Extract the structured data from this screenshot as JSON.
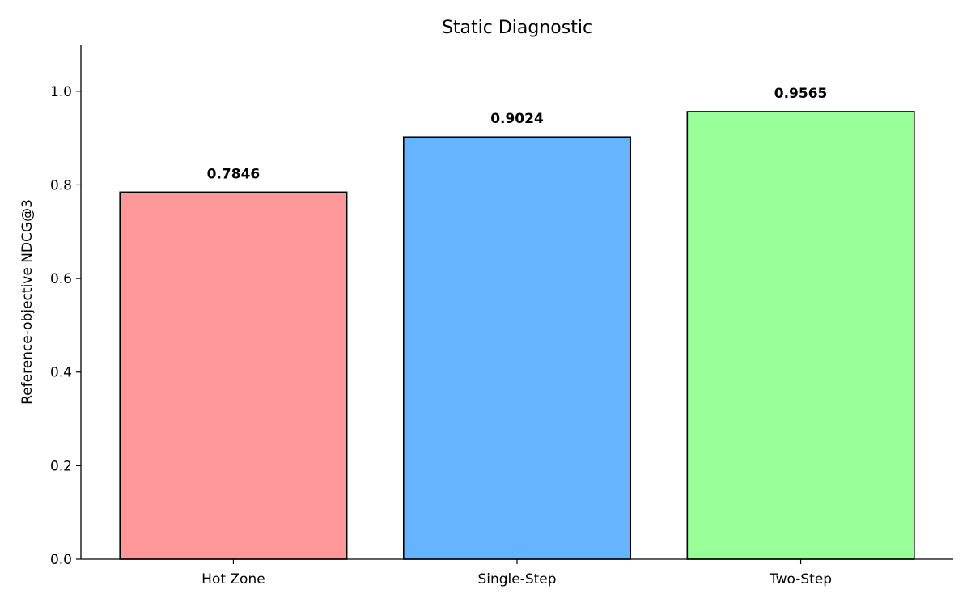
{
  "chart_data": {
    "type": "bar",
    "title": "Static Diagnostic",
    "xlabel": "",
    "ylabel": "Reference-objective NDCG@3",
    "categories": [
      "Hot Zone",
      "Single-Step",
      "Two-Step"
    ],
    "values": [
      0.7846,
      0.9024,
      0.9565
    ],
    "value_labels": [
      "0.7846",
      "0.9024",
      "0.9565"
    ],
    "colors": [
      "#ff9999",
      "#66b3ff",
      "#99ff99"
    ],
    "edge_color": "#000000",
    "ylim": [
      0,
      1.1
    ],
    "yticks": [
      0.0,
      0.2,
      0.4,
      0.6,
      0.8,
      1.0
    ],
    "ytick_labels": [
      "0.0",
      "0.2",
      "0.4",
      "0.6",
      "0.8",
      "1.0"
    ],
    "grid": false,
    "legend": "none"
  }
}
